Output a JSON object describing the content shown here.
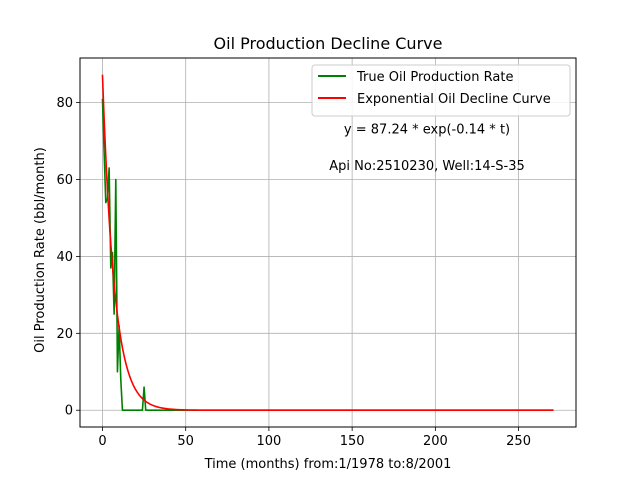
{
  "chart_data": {
    "type": "line",
    "title": "Oil Production Decline Curve",
    "xlabel": "Time (months) from:1/1978 to:8/2001",
    "ylabel": "Oil Production Rate (bbl/month)",
    "xlim": [
      -13.5,
      284.5
    ],
    "ylim": [
      -4.36,
      91.6
    ],
    "xticks": [
      0,
      50,
      100,
      150,
      200,
      250
    ],
    "yticks": [
      0,
      20,
      40,
      60,
      80
    ],
    "grid": true,
    "legend_position": "top-right",
    "annotations": [
      {
        "text": "y = 87.24 * exp(-0.14 * t)",
        "x": 195,
        "y": 72
      },
      {
        "text": "Api No:2510230, Well:14-S-35",
        "x": 195,
        "y": 62.5
      }
    ],
    "series": [
      {
        "name": "True Oil Production Rate",
        "color": "#008000",
        "x": [
          0,
          1,
          2,
          3,
          4,
          5,
          6,
          7,
          8,
          9,
          10,
          11,
          12,
          13,
          14,
          15,
          16,
          17,
          18,
          19,
          20,
          21,
          22,
          23,
          24,
          25,
          26,
          27,
          28,
          29,
          30,
          35,
          40,
          50,
          100,
          150,
          200,
          250,
          271
        ],
        "y": [
          81,
          67,
          54,
          55,
          63,
          37,
          41,
          25,
          60,
          10,
          22,
          8,
          0,
          0,
          0,
          0,
          0,
          0,
          0,
          0,
          0,
          0,
          0,
          0,
          0,
          6,
          0,
          0,
          0,
          0,
          0,
          0,
          0,
          0,
          0,
          0,
          0,
          0,
          0
        ]
      },
      {
        "name": "Exponential Oil Decline Curve",
        "color": "#ff0000",
        "a": 87.24,
        "b": 0.14,
        "x_start": 0,
        "x_end": 271
      }
    ]
  }
}
